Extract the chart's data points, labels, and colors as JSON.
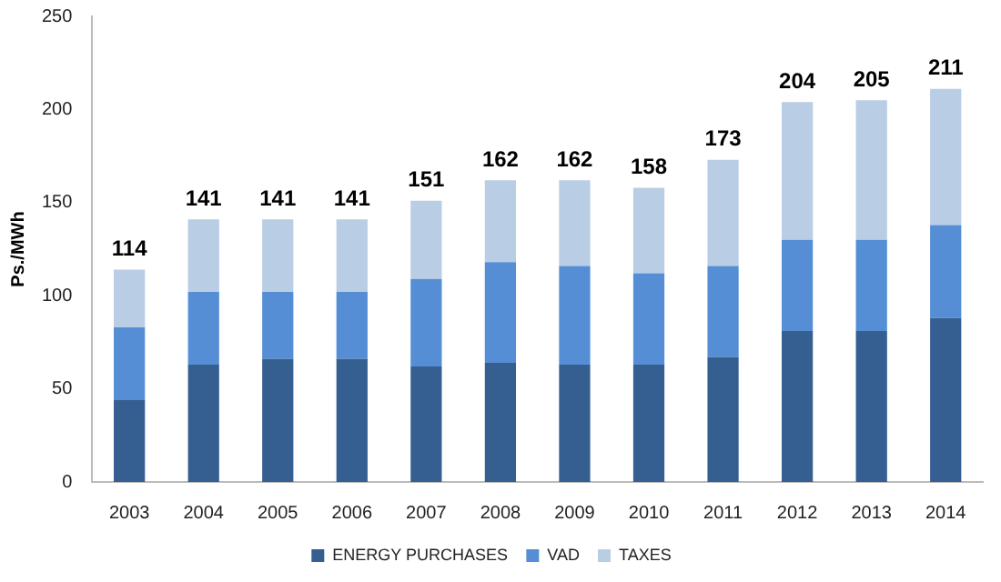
{
  "chart_data": {
    "type": "bar",
    "stacked": true,
    "ylabel": "Ps./MWh",
    "categories": [
      "2003",
      "2004",
      "2005",
      "2006",
      "2007",
      "2008",
      "2009",
      "2010",
      "2011",
      "2012",
      "2013",
      "2014"
    ],
    "series": [
      {
        "name": "ENERGY PURCHASES",
        "color": "#365f91",
        "values": [
          44,
          63,
          66,
          66,
          62,
          64,
          63,
          63,
          67,
          81,
          81,
          88
        ]
      },
      {
        "name": "VAD",
        "color": "#558ed5",
        "values": [
          39,
          39,
          36,
          36,
          47,
          54,
          53,
          49,
          49,
          49,
          49,
          50
        ]
      },
      {
        "name": "TAXES",
        "color": "#b9cde5",
        "values": [
          31,
          39,
          39,
          39,
          42,
          44,
          46,
          46,
          57,
          74,
          75,
          73
        ]
      }
    ],
    "totals": [
      "114",
      "141",
      "141",
      "141",
      "151",
      "162",
      "162",
      "158",
      "173",
      "204",
      "205",
      "211"
    ],
    "ylim": [
      0,
      250
    ],
    "yticks": [
      0,
      50,
      100,
      150,
      200,
      250
    ],
    "grid": false,
    "legend": "bottom"
  }
}
